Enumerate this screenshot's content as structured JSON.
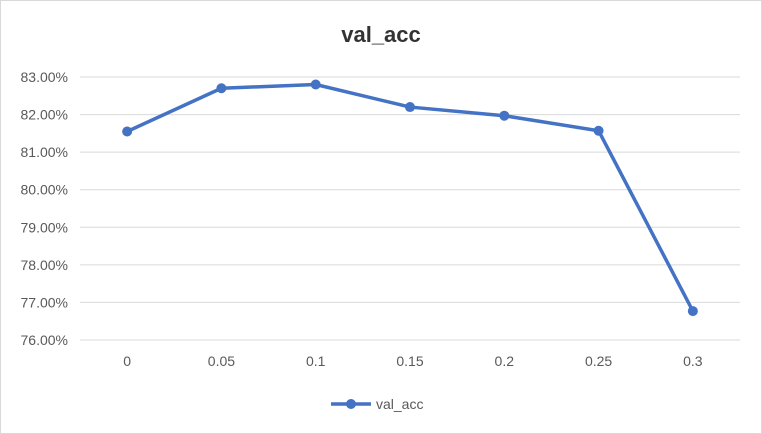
{
  "chart_data": {
    "type": "line",
    "title": "val_acc",
    "xlabel": "",
    "ylabel": "",
    "categories": [
      "0",
      "0.05",
      "0.1",
      "0.15",
      "0.2",
      "0.25",
      "0.3"
    ],
    "series": [
      {
        "name": "val_acc",
        "values": [
          81.55,
          82.7,
          82.8,
          82.2,
          81.97,
          81.57,
          76.77
        ],
        "color": "#4472c4"
      }
    ],
    "y_ticks": [
      "76.00%",
      "77.00%",
      "78.00%",
      "79.00%",
      "80.00%",
      "81.00%",
      "82.00%",
      "83.00%"
    ],
    "ylim": [
      76,
      83
    ],
    "grid": true,
    "legend": "bottom"
  }
}
